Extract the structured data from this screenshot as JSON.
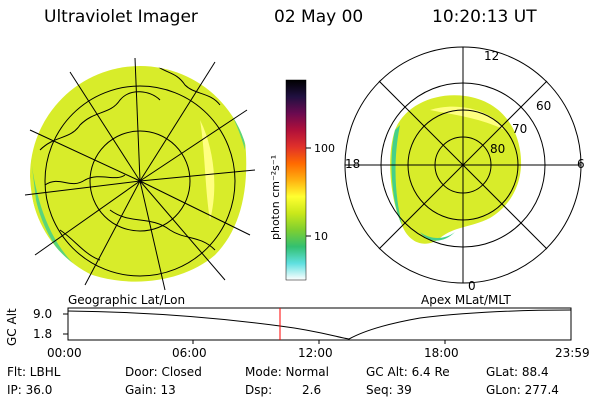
{
  "header": {
    "instrument": "Ultraviolet Imager",
    "date": "02 May 00",
    "time": "10:20:13 UT"
  },
  "colorbar": {
    "unit_label": "photon cm⁻²s⁻¹",
    "ticks": [
      "100",
      "10"
    ],
    "colors": [
      "#ffffff",
      "#5fe0e0",
      "#33c070",
      "#7fcf30",
      "#c9e81a",
      "#ffff30",
      "#ffb010",
      "#ff6a00",
      "#e0302a",
      "#b0103a",
      "#6a0a50",
      "#201040",
      "#000000"
    ]
  },
  "left_map": {
    "caption": "Geographic Lat/Lon",
    "aurora_colors": {
      "main": "#d8ec2a",
      "edge": "#44d08a",
      "bright": "#ffff80",
      "coast": "#000000"
    }
  },
  "right_map": {
    "caption": "Apex MLat/MLT",
    "mlt_labels": {
      "top": "12",
      "bottom": "0",
      "left": "18",
      "right": "6"
    },
    "lat_labels": [
      "60",
      "70",
      "80"
    ]
  },
  "orbit_plot": {
    "ylabel": "GC Alt",
    "y_ticks": [
      "9.0",
      "1.8"
    ],
    "x_ticks": [
      "00:00",
      "06:00",
      "12:00",
      "18:00",
      "23:59"
    ],
    "current_time_marker": "10:20",
    "marker_color": "#ff0000"
  },
  "info": {
    "row1": {
      "flt": "Flt: LBHL",
      "door": "Door: Closed",
      "mode": "Mode: Normal",
      "gc_alt": "GC Alt: 6.4 Re",
      "glat": "GLat: 88.4"
    },
    "row2": {
      "ip": "IP: 36.0",
      "gain": "Gain: 13",
      "dsp_label": "Dsp:",
      "dsp_value": "2.6",
      "seq": "Seq: 39",
      "glon": "GLon: 277.4"
    }
  }
}
